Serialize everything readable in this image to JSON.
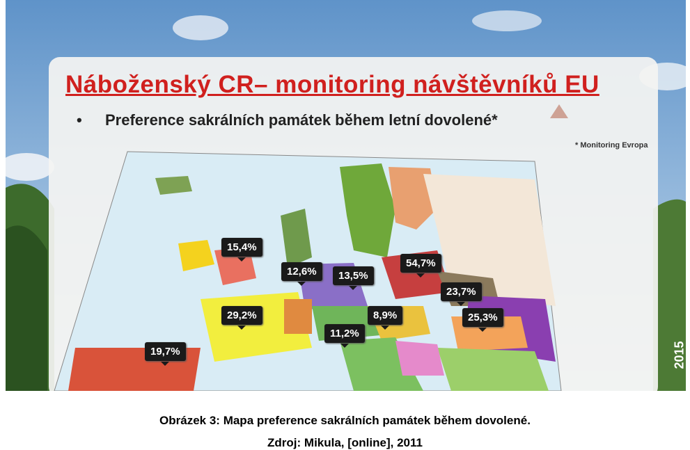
{
  "slide": {
    "title": "Náboženský CR– monitoring návštěvníků EU",
    "bullet": "Preference sakrálních památek během letní dovolené*",
    "note": "* Monitoring Evropa",
    "map_labels": [
      "15,4%",
      "12,6%",
      "13,5%",
      "54,7%",
      "23,7%",
      "29,2%",
      "8,9%",
      "25,3%",
      "11,2%",
      "19,7%"
    ],
    "side_text": "2015"
  },
  "caption": {
    "line1": "Obrázek 3: Mapa preference sakrálních památek během dovolené.",
    "line2": "Zdroj: Mikula, [online], 2011"
  }
}
